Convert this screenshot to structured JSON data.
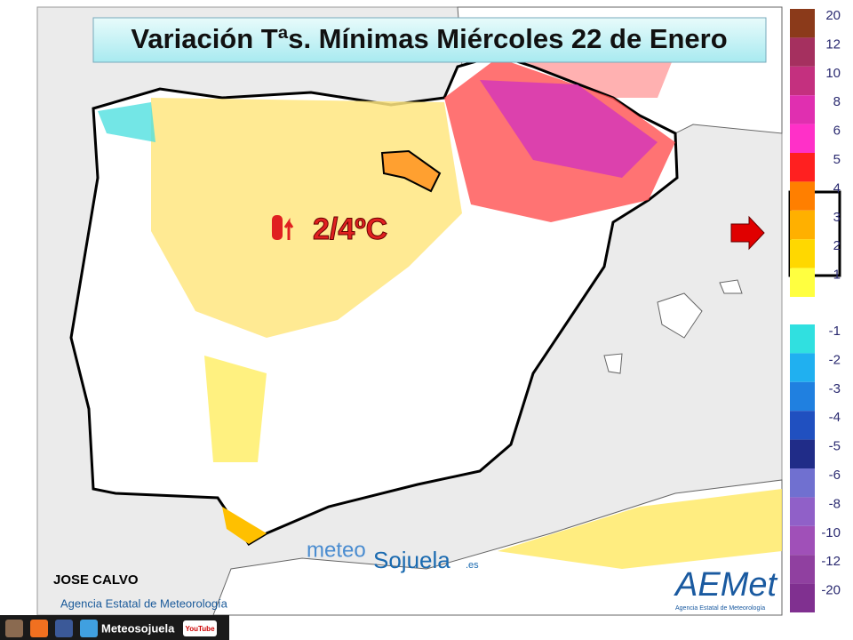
{
  "header": {
    "title": "Variación Tªs. Mínimas Miércoles 22 de Enero"
  },
  "annotation": {
    "text": "2/4ºC"
  },
  "legend": {
    "items": [
      {
        "label": "20",
        "color": "#8b3a1a"
      },
      {
        "label": "12",
        "color": "#a5305f"
      },
      {
        "label": "10",
        "color": "#c4307f"
      },
      {
        "label": "8",
        "color": "#e02fb0"
      },
      {
        "label": "6",
        "color": "#ff30c8"
      },
      {
        "label": "5",
        "color": "#ff2020"
      },
      {
        "label": "4",
        "color": "#ff7f00"
      },
      {
        "label": "3",
        "color": "#ffb000"
      },
      {
        "label": "2",
        "color": "#ffd800"
      },
      {
        "label": "1",
        "color": "#ffff40"
      },
      {
        "label": "-1",
        "color": "#30e0e0"
      },
      {
        "label": "-2",
        "color": "#20b0f0"
      },
      {
        "label": "-3",
        "color": "#2080e0"
      },
      {
        "label": "-4",
        "color": "#2050c0"
      },
      {
        "label": "-5",
        "color": "#202c88"
      },
      {
        "label": "-6",
        "color": "#7070d0"
      },
      {
        "label": "-8",
        "color": "#9060c8"
      },
      {
        "label": "-10",
        "color": "#a050b8"
      },
      {
        "label": "-12",
        "color": "#9040a0"
      },
      {
        "label": "-20",
        "color": "#803090"
      }
    ]
  },
  "credits": {
    "author": "JOSE CALVO",
    "agency": "Agencia Estatal de Meteorología",
    "logo_meteo": "meteo",
    "logo_sojuela": "Sojuela",
    "logo_es": ".es",
    "aemet": "AEMet",
    "aemet_sub": "Agencia Estatal de Meteorología"
  },
  "footer": {
    "brand": "Meteosojuela",
    "youtube": "YouTube"
  }
}
